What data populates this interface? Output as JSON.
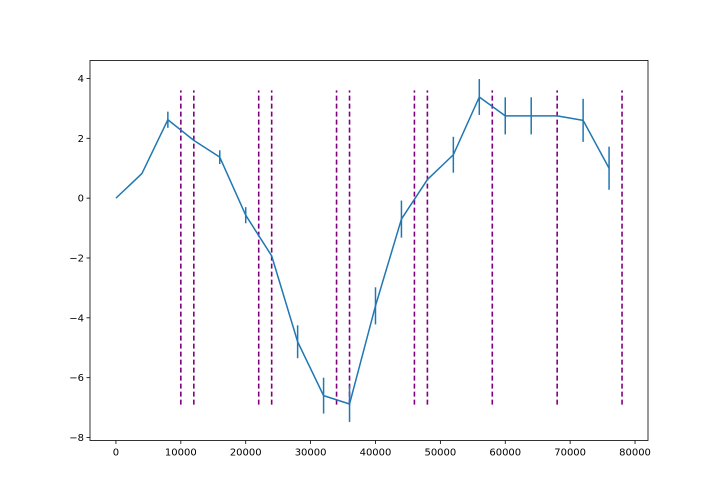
{
  "chart_data": {
    "type": "line",
    "title": "",
    "xlabel": "",
    "ylabel": "",
    "xlim": [
      -4000,
      82000
    ],
    "ylim": [
      -8.1,
      4.6
    ],
    "xticks": [
      0,
      10000,
      20000,
      30000,
      40000,
      50000,
      60000,
      70000,
      80000
    ],
    "xtick_labels": [
      "0",
      "10000",
      "20000",
      "30000",
      "40000",
      "50000",
      "60000",
      "70000",
      "80000"
    ],
    "yticks": [
      -8,
      -6,
      -4,
      -2,
      0,
      2,
      4
    ],
    "ytick_labels": [
      "−8",
      "−6",
      "−4",
      "−2",
      "0",
      "2",
      "4"
    ],
    "grid": false,
    "series": [
      {
        "color": "#1f77b4",
        "points": [
          {
            "x": 0,
            "y": 0.0,
            "err": 0
          },
          {
            "x": 4000,
            "y": 0.82,
            "err": 0
          },
          {
            "x": 8000,
            "y": 2.62,
            "err": 0.27
          },
          {
            "x": 12000,
            "y": 1.93,
            "err": 0
          },
          {
            "x": 16000,
            "y": 1.37,
            "err": 0.23
          },
          {
            "x": 20000,
            "y": -0.57,
            "err": 0.27
          },
          {
            "x": 24000,
            "y": -1.93,
            "err": 0
          },
          {
            "x": 28000,
            "y": -4.8,
            "err": 0.55
          },
          {
            "x": 32000,
            "y": -6.6,
            "err": 0.6
          },
          {
            "x": 36000,
            "y": -6.88,
            "err": 0.6
          },
          {
            "x": 40000,
            "y": -3.6,
            "err": 0.62
          },
          {
            "x": 44000,
            "y": -0.7,
            "err": 0.62
          },
          {
            "x": 48000,
            "y": 0.62,
            "err": 0
          },
          {
            "x": 52000,
            "y": 1.45,
            "err": 0.6
          },
          {
            "x": 56000,
            "y": 3.38,
            "err": 0.6
          },
          {
            "x": 60000,
            "y": 2.75,
            "err": 0.62
          },
          {
            "x": 64000,
            "y": 2.75,
            "err": 0.62
          },
          {
            "x": 68000,
            "y": 2.75,
            "err": 0
          },
          {
            "x": 72000,
            "y": 2.6,
            "err": 0.72
          },
          {
            "x": 76000,
            "y": 1.0,
            "err": 0.72
          }
        ]
      }
    ],
    "vlines": {
      "color": "#800080",
      "style": "dashed",
      "ymin": -6.9,
      "ymax": 3.6,
      "x": [
        10000,
        12000,
        22000,
        24000,
        34000,
        36000,
        46000,
        48000,
        58000,
        68000,
        78000
      ]
    }
  }
}
